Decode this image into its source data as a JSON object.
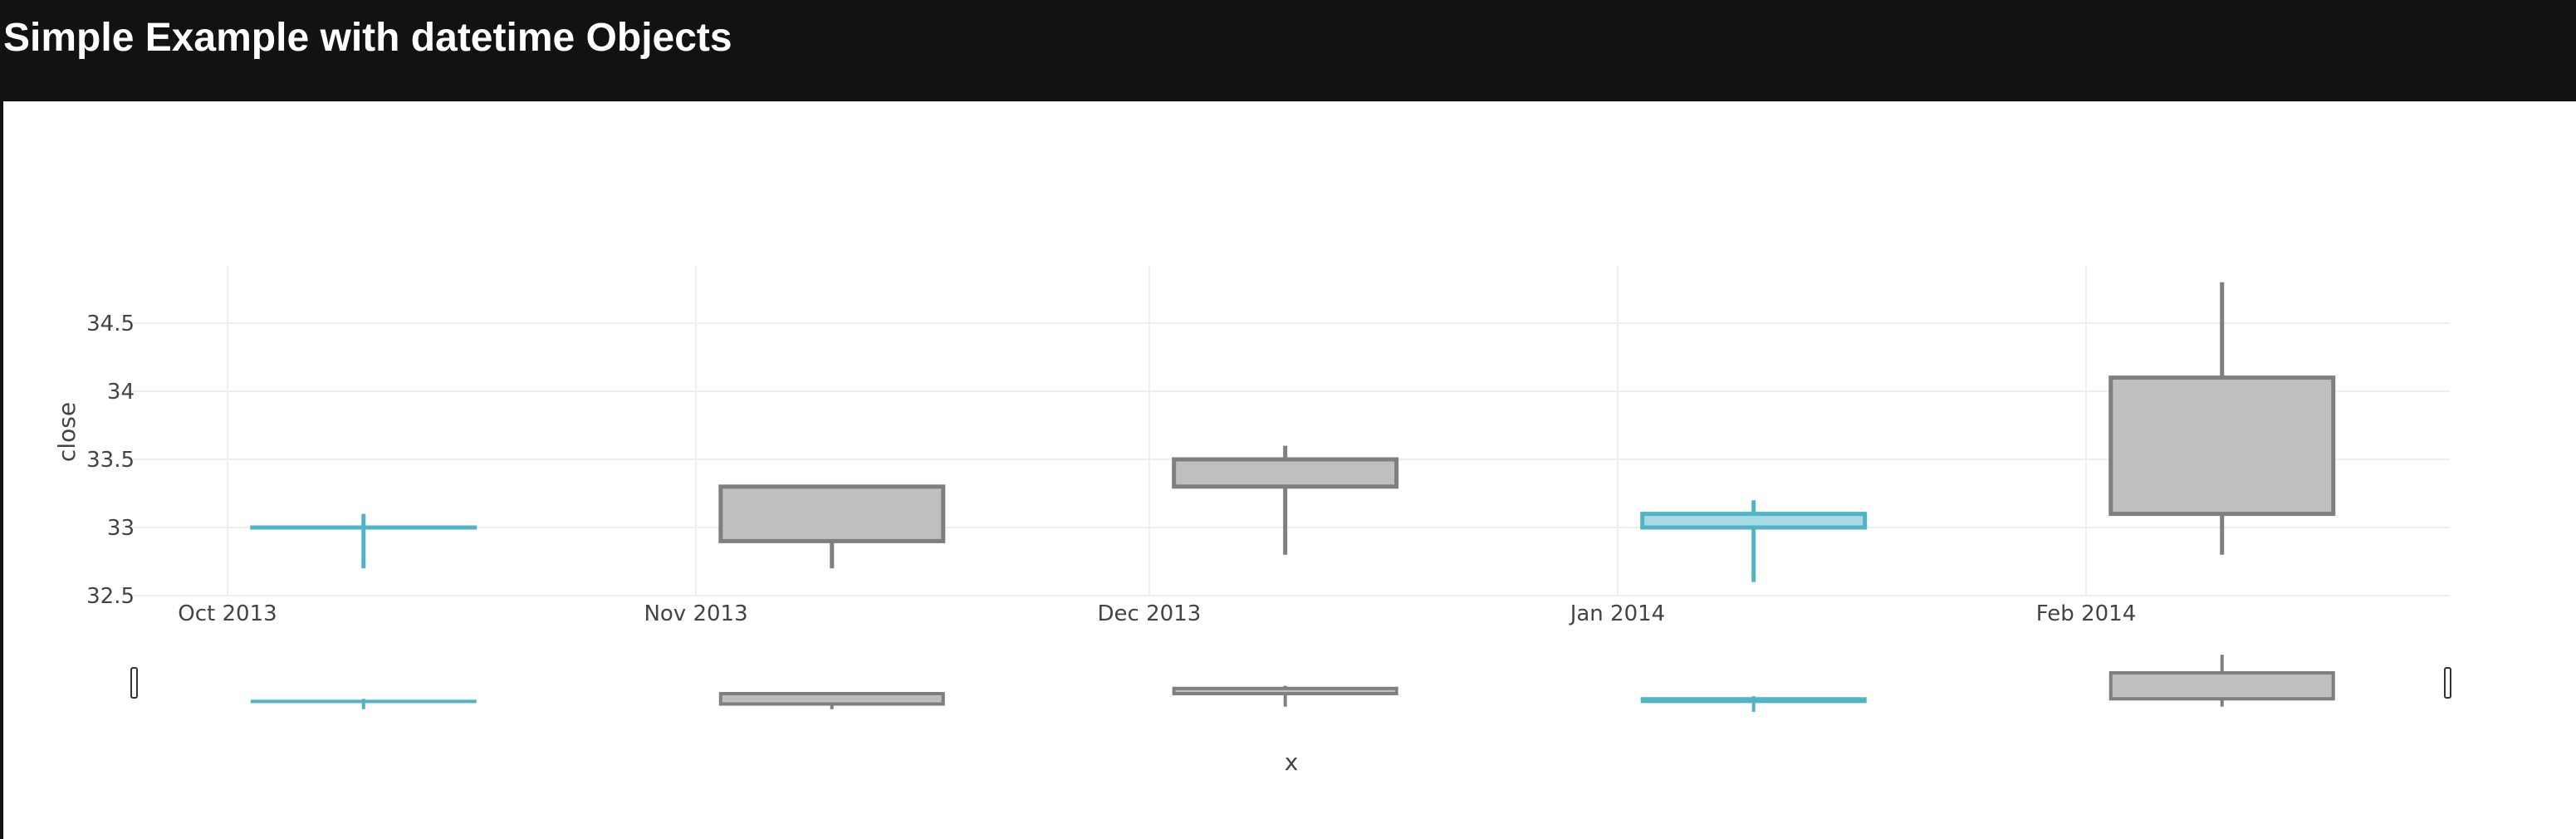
{
  "page": {
    "title": "Simple Example with datetime Objects"
  },
  "colors": {
    "increasing": "#4fb5c6",
    "increasing_fill": "rgba(79,181,198,0.5)",
    "decreasing": "#7f7f7f",
    "decreasing_fill": "#bfbfbf",
    "grid": "#eeeeee",
    "header_bg": "#121212"
  },
  "chart_data": {
    "type": "candlestick",
    "title": "",
    "xlabel": "x",
    "ylabel": "close",
    "x_ticks": [
      "Oct 2013",
      "Nov 2013",
      "Dec 2013",
      "Jan 2014",
      "Feb 2014"
    ],
    "y_ticks": [
      "32.5",
      "33",
      "33.5",
      "34",
      "34.5"
    ],
    "ylim": [
      32.5,
      34.9
    ],
    "xlim": [
      "2013-10-01",
      "2014-02-28"
    ],
    "grid": true,
    "rangeslider": true,
    "candles": [
      {
        "date": "2013-10-10",
        "open": 33.0,
        "high": 33.1,
        "low": 32.7,
        "close": 33.0
      },
      {
        "date": "2013-11-10",
        "open": 33.3,
        "high": 33.3,
        "low": 32.7,
        "close": 32.9
      },
      {
        "date": "2013-12-10",
        "open": 33.5,
        "high": 33.6,
        "low": 32.8,
        "close": 33.3
      },
      {
        "date": "2014-01-10",
        "open": 33.0,
        "high": 33.2,
        "low": 32.6,
        "close": 33.1
      },
      {
        "date": "2014-02-10",
        "open": 34.1,
        "high": 34.8,
        "low": 32.8,
        "close": 33.1
      }
    ]
  }
}
